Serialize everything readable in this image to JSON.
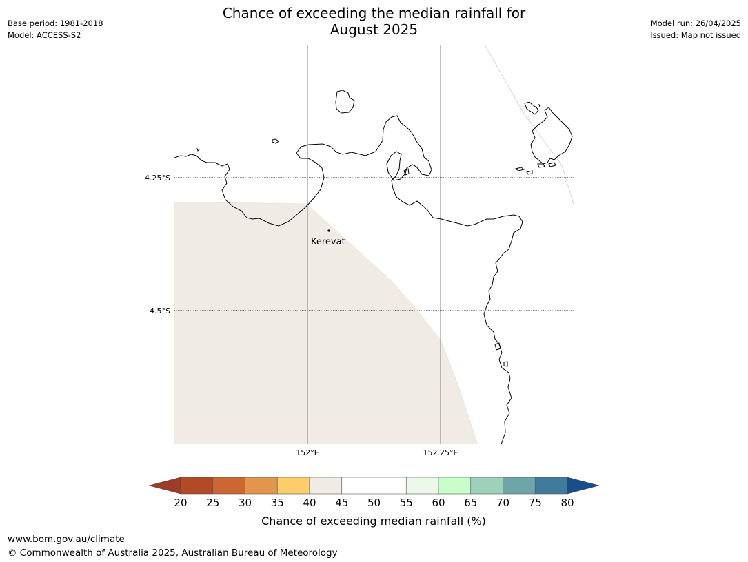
{
  "title": {
    "line1": "Chance of exceeding the median rainfall for",
    "line2": "August 2025"
  },
  "meta_left": {
    "base_period": "Base period: 1981-2018",
    "model": "Model: ACCESS-S2"
  },
  "meta_right": {
    "model_run": "Model run: 26/04/2025",
    "issued": "Issued: Map not issued"
  },
  "map": {
    "lat_labels": [
      "4.25°S",
      "4.5°S"
    ],
    "lon_labels": [
      "152°E",
      "152.25°E"
    ],
    "places": [
      {
        "name": "Kerevat"
      }
    ],
    "shaded_category": "40-45",
    "shaded_color": "#f0ebe4"
  },
  "colorbar": {
    "label": "Chance of exceeding median rainfall (%)",
    "ticks": [
      "20",
      "25",
      "30",
      "35",
      "40",
      "45",
      "50",
      "55",
      "60",
      "65",
      "70",
      "75",
      "80"
    ],
    "colors": [
      "#b24a26",
      "#cc6633",
      "#e3964b",
      "#fdcd6b",
      "#f0ebe4",
      "#ffffff",
      "#ffffff",
      "#ebf8ea",
      "#c9fdc9",
      "#9ed1b9",
      "#6ea5a8",
      "#417b9c"
    ],
    "under_color": "#9a3d26",
    "over_color": "#174f8d"
  },
  "footer": {
    "url": "www.bom.gov.au/climate",
    "copyright": "© Commonwealth of Australia 2025, Australian Bureau of Meteorology"
  }
}
